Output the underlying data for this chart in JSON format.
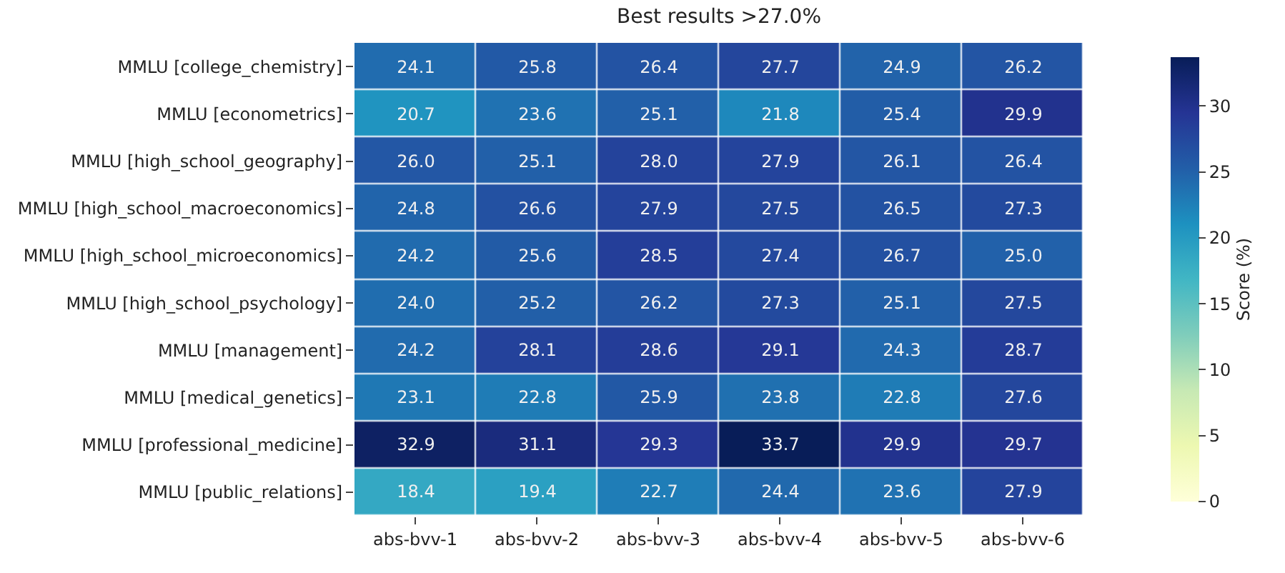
{
  "chart_data": {
    "type": "heatmap",
    "title": "Best results >27.0%",
    "clabel": "Score (%)",
    "categories": [
      "abs-bvv-1",
      "abs-bvv-2",
      "abs-bvv-3",
      "abs-bvv-4",
      "abs-bvv-5",
      "abs-bvv-6"
    ],
    "y_categories": [
      "MMLU [college_chemistry]",
      "MMLU [econometrics]",
      "MMLU [high_school_geography]",
      "MMLU [high_school_macroeconomics]",
      "MMLU [high_school_microeconomics]",
      "MMLU [high_school_psychology]",
      "MMLU [management]",
      "MMLU [medical_genetics]",
      "MMLU [professional_medicine]",
      "MMLU [public_relations]"
    ],
    "cells": [
      [
        24.1,
        25.8,
        26.4,
        27.7,
        24.9,
        26.2
      ],
      [
        20.7,
        23.6,
        25.1,
        21.8,
        25.4,
        29.9
      ],
      [
        26.0,
        25.1,
        28.0,
        27.9,
        26.1,
        26.4
      ],
      [
        24.8,
        26.6,
        27.9,
        27.5,
        26.5,
        27.3
      ],
      [
        24.2,
        25.6,
        28.5,
        27.4,
        26.7,
        25.0
      ],
      [
        24.0,
        25.2,
        26.2,
        27.3,
        25.1,
        27.5
      ],
      [
        24.2,
        28.1,
        28.6,
        29.1,
        24.3,
        28.7
      ],
      [
        23.1,
        22.8,
        25.9,
        23.8,
        22.8,
        27.6
      ],
      [
        32.9,
        31.1,
        29.3,
        33.7,
        29.9,
        29.7
      ],
      [
        18.4,
        19.4,
        22.7,
        24.4,
        23.6,
        27.9
      ]
    ],
    "cell_labels": [
      [
        "24.1",
        "25.8",
        "26.4",
        "27.7",
        "24.9",
        "26.2"
      ],
      [
        "20.7",
        "23.6",
        "25.1",
        "21.8",
        "25.4",
        "29.9"
      ],
      [
        "26.0",
        "25.1",
        "28.0",
        "27.9",
        "26.1",
        "26.4"
      ],
      [
        "24.8",
        "26.6",
        "27.9",
        "27.5",
        "26.5",
        "27.3"
      ],
      [
        "24.2",
        "25.6",
        "28.5",
        "27.4",
        "26.7",
        "25.0"
      ],
      [
        "24.0",
        "25.2",
        "26.2",
        "27.3",
        "25.1",
        "27.5"
      ],
      [
        "24.2",
        "28.1",
        "28.6",
        "29.1",
        "24.3",
        "28.7"
      ],
      [
        "23.1",
        "22.8",
        "25.9",
        "23.8",
        "22.8",
        "27.6"
      ],
      [
        "32.9",
        "31.1",
        "29.3",
        "33.7",
        "29.9",
        "29.7"
      ],
      [
        "18.4",
        "19.4",
        "22.7",
        "24.4",
        "23.6",
        "27.9"
      ]
    ],
    "clim": [
      0,
      33.7
    ],
    "cticks": [
      0,
      5,
      10,
      15,
      20,
      25,
      30
    ]
  }
}
